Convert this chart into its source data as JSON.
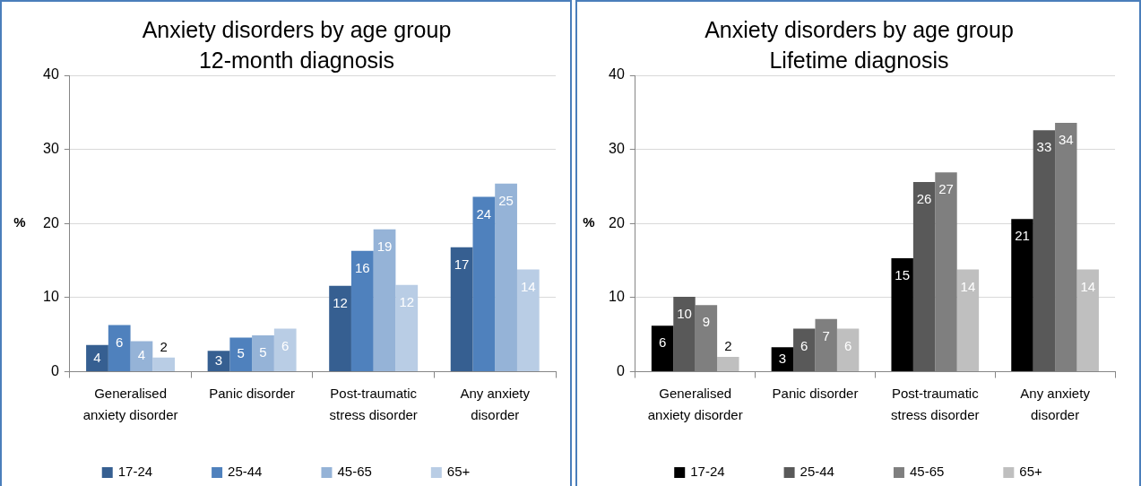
{
  "chart_data": [
    {
      "type": "bar",
      "title": "Anxiety disorders by age group",
      "subtitle": "12-month diagnosis",
      "ylabel": "%",
      "categories": [
        "Generalised anxiety disorder",
        "Panic disorder",
        "Post-traumatic stress disorder",
        "Any anxiety disorder"
      ],
      "series": [
        {
          "name": "17-24",
          "color": "#365f91",
          "values": [
            3.6,
            2.8,
            11.6,
            16.8
          ],
          "value_labels": [
            "4",
            "3",
            "12",
            "17"
          ]
        },
        {
          "name": "25-44",
          "color": "#4f81bd",
          "values": [
            6.3,
            4.6,
            16.3,
            23.6
          ],
          "value_labels": [
            "6",
            "5",
            "16",
            "24"
          ]
        },
        {
          "name": "45-65",
          "color": "#95b3d7",
          "values": [
            4.1,
            4.9,
            19.2,
            25.4
          ],
          "value_labels": [
            "4",
            "5",
            "19",
            "25"
          ]
        },
        {
          "name": "65+",
          "color": "#b9cde5",
          "values": [
            1.9,
            5.8,
            11.7,
            13.8
          ],
          "value_labels": [
            "2",
            "6",
            "12",
            "14"
          ]
        }
      ],
      "ylim": [
        0,
        40
      ],
      "yticks": [
        0,
        10,
        20,
        30,
        40
      ],
      "grid": "y",
      "legend": "bottom"
    },
    {
      "type": "bar",
      "title": "Anxiety disorders by age group",
      "subtitle": "Lifetime diagnosis",
      "ylabel": "%",
      "categories": [
        "Generalised anxiety disorder",
        "Panic disorder",
        "Post-traumatic stress disorder",
        "Any anxiety disorder"
      ],
      "series": [
        {
          "name": "17-24",
          "color": "#000000",
          "values": [
            6.2,
            3.3,
            15.3,
            20.6
          ],
          "value_labels": [
            "6",
            "3",
            "15",
            "21"
          ]
        },
        {
          "name": "25-44",
          "color": "#595959",
          "values": [
            10.1,
            5.8,
            25.6,
            32.6
          ],
          "value_labels": [
            "10",
            "6",
            "26",
            "33"
          ]
        },
        {
          "name": "45-65",
          "color": "#7f7f7f",
          "values": [
            9.0,
            7.1,
            26.9,
            33.6
          ],
          "value_labels": [
            "9",
            "7",
            "27",
            "34"
          ]
        },
        {
          "name": "65+",
          "color": "#bfbfbf",
          "values": [
            2.0,
            5.8,
            13.8,
            13.8
          ],
          "value_labels": [
            "2",
            "6",
            "14",
            "14"
          ]
        }
      ],
      "ylim": [
        0,
        40
      ],
      "yticks": [
        0,
        10,
        20,
        30,
        40
      ],
      "grid": "y",
      "legend": "bottom"
    }
  ]
}
